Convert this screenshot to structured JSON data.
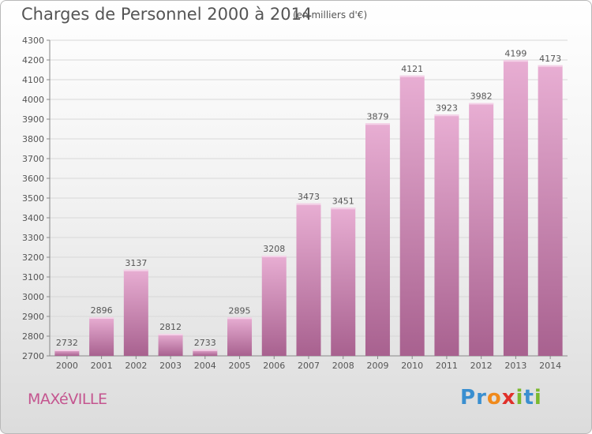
{
  "title": "Charges de Personnel 2000 à 2014",
  "subtitle": "(en milliers d'€)",
  "town": "MAXéVILLE",
  "logo": {
    "text": "Proxiti",
    "letters": [
      {
        "ch": "P",
        "color": "#3a8fd0"
      },
      {
        "ch": "r",
        "color": "#3a8fd0"
      },
      {
        "ch": "o",
        "color": "#f08a1c"
      },
      {
        "ch": "x",
        "color": "#e0302a"
      },
      {
        "ch": "i",
        "color": "#7ab92e"
      },
      {
        "ch": "t",
        "color": "#3a8fd0"
      },
      {
        "ch": "i",
        "color": "#7ab92e"
      }
    ]
  },
  "colors": {
    "bar_top": "#e8aed3",
    "bar_bottom": "#a8618f",
    "grid": "#d8d8d8",
    "text": "#555555",
    "town": "#c4558f"
  },
  "chart_data": {
    "type": "bar",
    "categories": [
      "2000",
      "2001",
      "2002",
      "2003",
      "2004",
      "2005",
      "2006",
      "2007",
      "2008",
      "2009",
      "2010",
      "2011",
      "2012",
      "2013",
      "2014"
    ],
    "values": [
      2732,
      2896,
      3137,
      2812,
      2733,
      2895,
      3208,
      3473,
      3451,
      3879,
      4121,
      3923,
      3982,
      4199,
      4173
    ],
    "ylim": [
      2700,
      4300
    ],
    "yticks": [
      2700,
      2800,
      2900,
      3000,
      3100,
      3200,
      3300,
      3400,
      3500,
      3600,
      3700,
      3800,
      3900,
      4000,
      4100,
      4200,
      4300
    ],
    "grid": true,
    "data_labels": true
  }
}
